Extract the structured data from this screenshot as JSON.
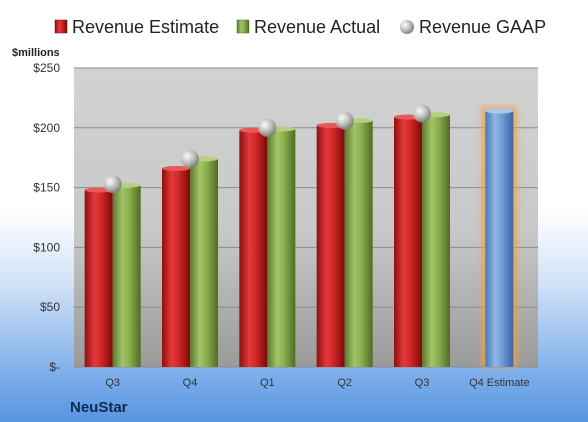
{
  "chart_data": {
    "type": "bar",
    "title": "",
    "ylabel": "$millions",
    "xlabel": "",
    "company": "NeuStar",
    "categories": [
      "Q3",
      "Q4",
      "Q1",
      "Q2",
      "Q3",
      "Q4 Estimate"
    ],
    "ylim": [
      0,
      250
    ],
    "yticks": [
      0,
      50,
      100,
      150,
      200,
      250
    ],
    "ytick_labels": [
      "$-",
      "$50",
      "$100",
      "$150",
      "$200",
      "$250"
    ],
    "legend_position": "top",
    "grid": true,
    "series": [
      {
        "name": "Revenue Estimate",
        "kind": "bar",
        "color": "#cc2222",
        "values": [
          148,
          166,
          198,
          202,
          209,
          null
        ]
      },
      {
        "name": "Revenue Actual",
        "kind": "bar",
        "color": "#86a84a",
        "values": [
          152,
          174,
          199,
          206,
          211,
          null
        ]
      },
      {
        "name": "Revenue GAAP",
        "kind": "marker",
        "color": "#b0b0b0",
        "values": [
          153,
          174,
          200,
          206,
          212,
          null
        ]
      }
    ],
    "highlight": {
      "category": "Q4 Estimate",
      "value": 214,
      "color": "#6f9fd8",
      "glow_color": "#f0a040"
    }
  }
}
